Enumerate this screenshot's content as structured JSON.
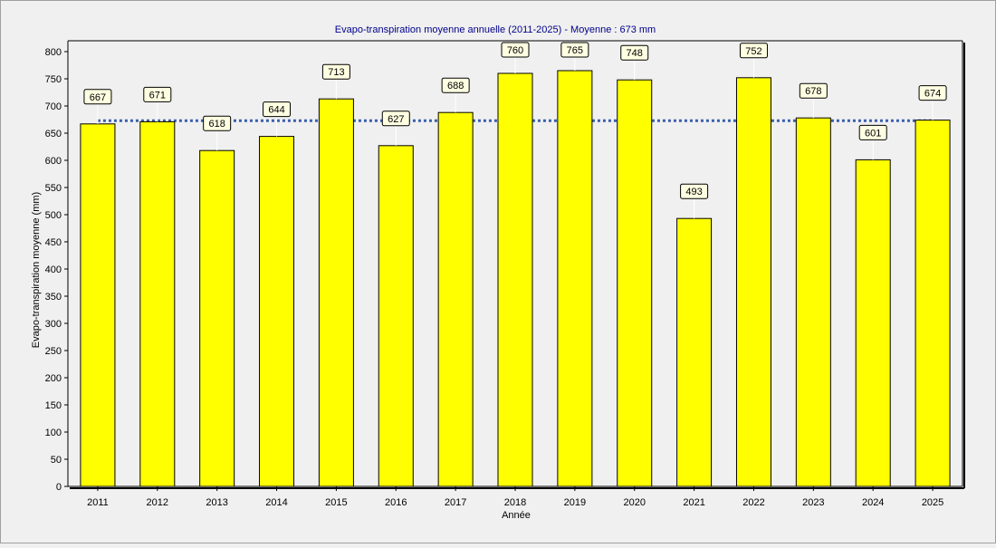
{
  "chart_data": {
    "type": "bar",
    "title": "Evapo-transpiration moyenne annuelle (2011-2025) - Moyenne : 673 mm",
    "xlabel": "Année",
    "ylabel": "Evapo-transpiration moyenne (mm)",
    "categories": [
      "2011",
      "2012",
      "2013",
      "2014",
      "2015",
      "2016",
      "2017",
      "2018",
      "2019",
      "2020",
      "2021",
      "2022",
      "2023",
      "2024",
      "2025"
    ],
    "values": [
      667,
      671,
      618,
      644,
      713,
      627,
      688,
      760,
      765,
      748,
      493,
      752,
      678,
      601,
      674
    ],
    "data_labels": [
      "667",
      "671",
      "618",
      "644",
      "713",
      "627",
      "688",
      "760",
      "765",
      "748",
      "493",
      "752",
      "678",
      "601",
      "674"
    ],
    "mean": 673,
    "ylim": [
      0,
      820
    ],
    "yticks": [
      0,
      50,
      100,
      150,
      200,
      250,
      300,
      350,
      400,
      450,
      500,
      550,
      600,
      650,
      700,
      750,
      800
    ],
    "ytick_labels": [
      "0",
      "50",
      "100",
      "150",
      "200",
      "250",
      "300",
      "350",
      "400",
      "450",
      "500",
      "550",
      "600",
      "650",
      "700",
      "750",
      "800"
    ],
    "grid": true,
    "colors": {
      "bar_fill": "#ffff00",
      "bar_stroke": "#000000",
      "mean_line": "#3a5fb0",
      "title": "#00008b",
      "label_box": "#ffffe1",
      "grid": "#c8c8c8",
      "plot_bg": "#f0f0f0"
    }
  }
}
